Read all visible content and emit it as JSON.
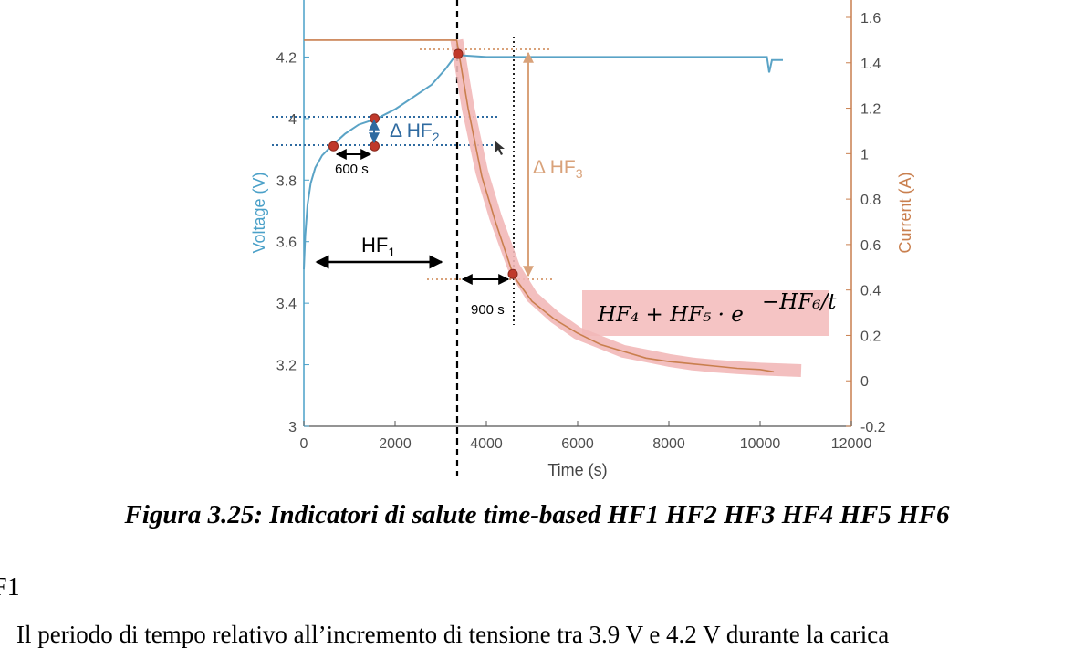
{
  "figure": {
    "caption": "Figura 3.25: Indicatori di salute time-based HF1 HF2 HF3 HF4 HF5 HF6",
    "annotations": {
      "hf1": "HF",
      "hf1_sub": "1",
      "dhf2": "Δ HF",
      "dhf2_sub": "2",
      "dhf3": "Δ HF",
      "dhf3_sub": "3",
      "t600": "600 s",
      "t900": "900 s",
      "formula": "HF₄ + HF₅ · e",
      "formula_exp": "−HF₆/t"
    },
    "colors": {
      "voltage": "#5aa3c6",
      "current": "#c97f4e",
      "highlight": "#f2b8b8",
      "marker": "#c0392b",
      "arrow_blue": "#2e6aa0"
    }
  },
  "chart_data": {
    "type": "line",
    "title": "",
    "xlabel": "Time (s)",
    "ylabel": "Voltage (V)",
    "y2label": "Current (A)",
    "xlim": [
      0,
      12000
    ],
    "ylim": [
      3,
      4.4
    ],
    "y2lim": [
      -0.2,
      1.6
    ],
    "xticks": [
      0,
      2000,
      4000,
      6000,
      8000,
      10000,
      12000
    ],
    "yticks": [
      3,
      3.2,
      3.4,
      3.6,
      3.8,
      4,
      4.2
    ],
    "y2ticks": [
      -0.2,
      0,
      0.2,
      0.4,
      0.6,
      0.8,
      1,
      1.2,
      1.4,
      1.6
    ],
    "xtick_labels": [
      "0",
      "2000",
      "4000",
      "6000",
      "8000",
      "10000",
      "12000"
    ],
    "ytick_labels": [
      "3",
      "3.2",
      "3.4",
      "3.6",
      "3.8",
      "4",
      "4.2"
    ],
    "y2tick_labels": [
      "-0.2",
      "0",
      "0.2",
      "0.4",
      "0.6",
      "0.8",
      "1",
      "1.2",
      "1.4",
      "1.6"
    ],
    "grid": false,
    "series": [
      {
        "axis": "left",
        "x": [
          0,
          30,
          80,
          150,
          250,
          400,
          600,
          900,
          1200,
          1600,
          2000,
          2400,
          2800,
          3100,
          3350,
          3500,
          4000,
          5000,
          6000,
          7000,
          8000,
          9000,
          10000,
          10150,
          10200,
          10260,
          10500
        ],
        "y": [
          3.51,
          3.62,
          3.72,
          3.79,
          3.84,
          3.88,
          3.91,
          3.95,
          3.98,
          4.0,
          4.03,
          4.07,
          4.11,
          4.16,
          4.21,
          4.205,
          4.2,
          4.2,
          4.2,
          4.2,
          4.2,
          4.2,
          4.2,
          4.2,
          4.15,
          4.19,
          4.19
        ]
      },
      {
        "axis": "right",
        "x": [
          0,
          3350,
          3600,
          3900,
          4200,
          4600,
          5000,
          5500,
          6000,
          6500,
          7000,
          7500,
          8000,
          8500,
          9000,
          9500,
          10000,
          10300
        ],
        "y": [
          1.5,
          1.5,
          1.2,
          0.9,
          0.7,
          0.46,
          0.35,
          0.27,
          0.21,
          0.16,
          0.13,
          0.1,
          0.085,
          0.075,
          0.065,
          0.055,
          0.05,
          0.04
        ]
      }
    ],
    "fit_curve": {
      "axis": "right",
      "x": [
        3350,
        3600,
        3900,
        4200,
        4600,
        5000,
        5500,
        6000,
        6500,
        7000,
        7500,
        8000,
        8500,
        9000,
        9500,
        10000,
        10500,
        10900
      ],
      "y": [
        1.5,
        1.2,
        0.92,
        0.72,
        0.5,
        0.37,
        0.28,
        0.21,
        0.17,
        0.13,
        0.11,
        0.09,
        0.075,
        0.065,
        0.058,
        0.052,
        0.048,
        0.045
      ]
    },
    "markers": [
      {
        "axis": "left",
        "x": 650,
        "y": 3.91
      },
      {
        "axis": "left",
        "x": 1550,
        "y": 3.91
      },
      {
        "axis": "left",
        "x": 1550,
        "y": 4.0
      },
      {
        "axis": "left",
        "x": 3380,
        "y": 4.21
      },
      {
        "axis": "right",
        "x": 4580,
        "y": 0.47
      }
    ]
  },
  "text": {
    "section_label": "F1",
    "body": "Il periodo di tempo relativo all’incremento di tensione tra 3.9 V e 4.2 V durante la carica"
  }
}
